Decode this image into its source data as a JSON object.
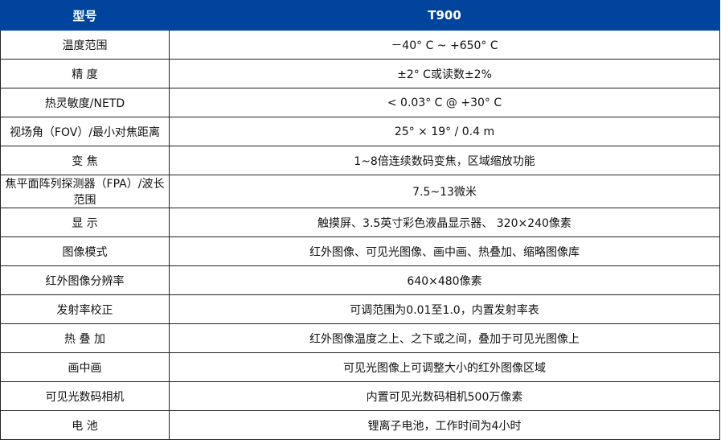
{
  "header": {
    "label": "型号",
    "value": "T900",
    "color": "#00449e"
  },
  "rows": [
    {
      "label": "温度范围",
      "value": "－40° C ~ +650° C"
    },
    {
      "label": "精 度",
      "value": "±2° C或读数±2%"
    },
    {
      "label": "热灵敏度/NETD",
      "value": "< 0.03° C @ +30° C"
    },
    {
      "label": "视场角（FOV）/最小对焦距离",
      "value": "25°  × 19°  / 0.4 m"
    },
    {
      "label": "变 焦",
      "value": "1~8倍连续数码变焦，区域缩放功能"
    },
    {
      "label": "焦平面阵列探测器（FPA）/波长范围",
      "value": "7.5~13微米"
    },
    {
      "label": "显 示",
      "value": "触摸屏、3.5英寸彩色液晶显示器、 320×240像素"
    },
    {
      "label": "图像模式",
      "value": "红外图像、可见光图像、画中画、热叠加、缩略图像库"
    },
    {
      "label": "红外图像分辨率",
      "value": "640×480像素"
    },
    {
      "label": "发射率校正",
      "value": "可调范围为0.01至1.0，内置发射率表"
    },
    {
      "label": "热 叠 加",
      "value": "红外图像温度之上、之下或之间，叠加于可见光图像上"
    },
    {
      "label": "画中画",
      "value": "可见光图像上可调整大小的红外图像区域"
    },
    {
      "label": "可见光数码相机",
      "value": "内置可见光数码相机500万像素"
    },
    {
      "label": "电 池",
      "value": "锂离子电池，工作时间为4小时"
    }
  ]
}
